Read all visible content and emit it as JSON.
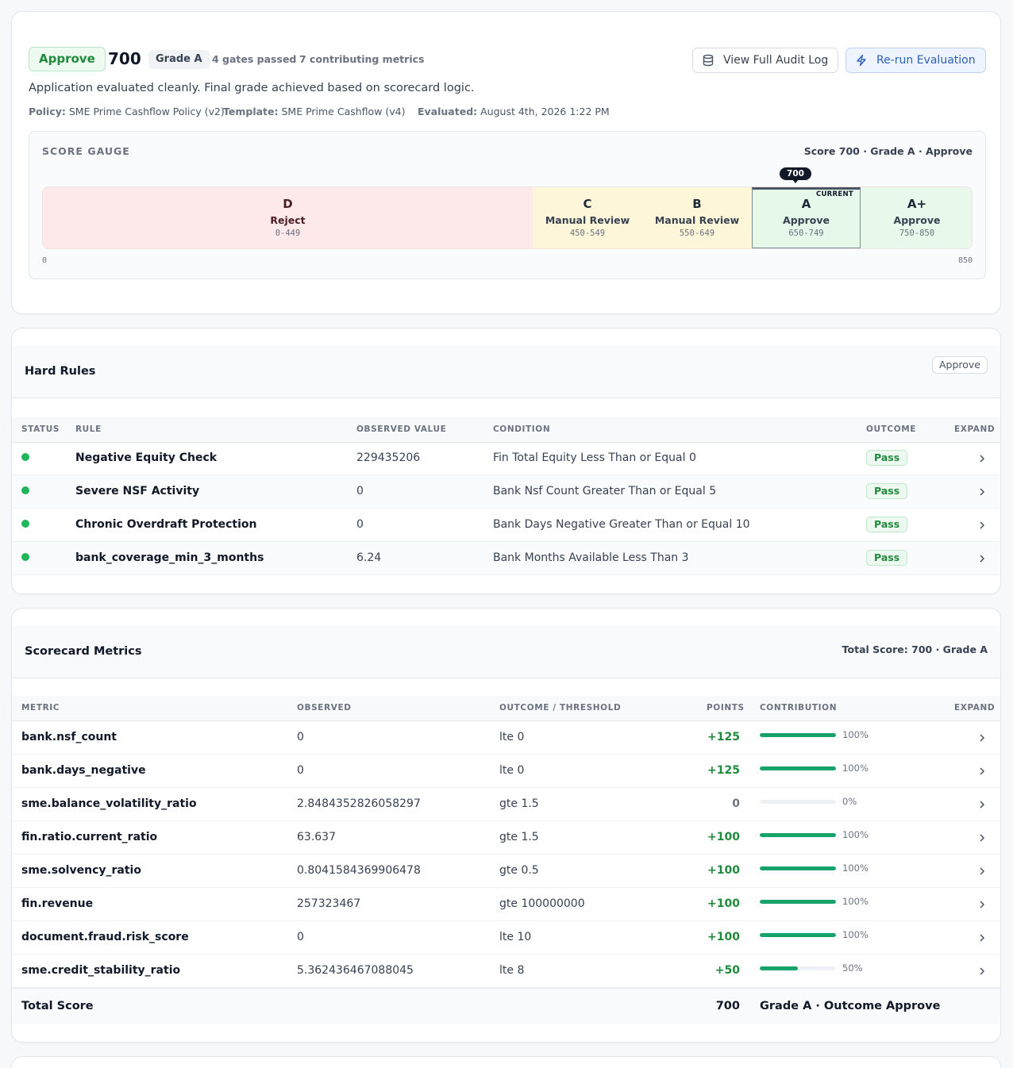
{
  "summary": {
    "decision": "Approve",
    "score": "700",
    "grade": "Grade A",
    "gates_passed": "4 gates passed",
    "contributing_metrics": "7 contributing metrics",
    "description": "Application evaluated cleanly. Final grade achieved based on scorecard logic.",
    "policy_label": "Policy:",
    "policy_value": "SME Prime Cashflow Policy (v2)",
    "template_label": "Template:",
    "template_value": "SME Prime Cashflow (v4)",
    "evaluated_label": "Evaluated:",
    "evaluated_value": "August 4th, 2026 1:22 PM",
    "audit_button": "View Full Audit Log",
    "rerun_button": "Re-run Evaluation"
  },
  "gauge": {
    "title": "SCORE GAUGE",
    "summary": "Score 700 · Grade A · Approve",
    "marker": "700",
    "current_label": "CURRENT",
    "current_score": 700,
    "min_label": "0",
    "max_label": "850",
    "bands": [
      {
        "grade": "D",
        "label": "Reject",
        "range": "0-449"
      },
      {
        "grade": "C",
        "label": "Manual Review",
        "range": "450-549"
      },
      {
        "grade": "B",
        "label": "Manual Review",
        "range": "550-649"
      },
      {
        "grade": "A",
        "label": "Approve",
        "range": "650-749"
      },
      {
        "grade": "A+",
        "label": "Approve",
        "range": "750-850"
      }
    ]
  },
  "hard_rules": {
    "title": "Hard Rules",
    "badge": "Approve",
    "columns": [
      "STATUS",
      "RULE",
      "OBSERVED VALUE",
      "CONDITION",
      "OUTCOME",
      "EXPAND"
    ],
    "rows": [
      {
        "rule": "Negative Equity Check",
        "observed": "229435206",
        "condition": "Fin Total Equity Less Than or Equal 0",
        "outcome": "Pass"
      },
      {
        "rule": "Severe NSF Activity",
        "observed": "0",
        "condition": "Bank Nsf Count Greater Than or Equal 5",
        "outcome": "Pass"
      },
      {
        "rule": "Chronic Overdraft Protection",
        "observed": "0",
        "condition": "Bank Days Negative Greater Than or Equal 10",
        "outcome": "Pass"
      },
      {
        "rule": "bank_coverage_min_3_months",
        "observed": "6.24",
        "condition": "Bank Months Available Less Than 3",
        "outcome": "Pass"
      }
    ]
  },
  "scorecard": {
    "title": "Scorecard Metrics",
    "total_header": "Total Score: 700 · Grade A",
    "columns": [
      "METRIC",
      "OBSERVED",
      "OUTCOME / THRESHOLD",
      "POINTS",
      "CONTRIBUTION",
      "EXPAND"
    ],
    "rows": [
      {
        "metric": "bank.nsf_count",
        "observed": "0",
        "threshold": "lte 0",
        "points": "+125",
        "contribution": 1.0,
        "pct": "100%"
      },
      {
        "metric": "bank.days_negative",
        "observed": "0",
        "threshold": "lte 0",
        "points": "+125",
        "contribution": 1.0,
        "pct": "100%"
      },
      {
        "metric": "sme.balance_volatility_ratio",
        "observed": "2.8484352826058297",
        "threshold": "gte 1.5",
        "points": "0",
        "contribution": 0.0,
        "pct": "0%"
      },
      {
        "metric": "fin.ratio.current_ratio",
        "observed": "63.637",
        "threshold": "gte 1.5",
        "points": "+100",
        "contribution": 1.0,
        "pct": "100%"
      },
      {
        "metric": "sme.solvency_ratio",
        "observed": "0.8041584369906478",
        "threshold": "gte 0.5",
        "points": "+100",
        "contribution": 1.0,
        "pct": "100%"
      },
      {
        "metric": "fin.revenue",
        "observed": "257323467",
        "threshold": "gte 100000000",
        "points": "+100",
        "contribution": 1.0,
        "pct": "100%"
      },
      {
        "metric": "document.fraud.risk_score",
        "observed": "0",
        "threshold": "lte 10",
        "points": "+100",
        "contribution": 1.0,
        "pct": "100%"
      },
      {
        "metric": "sme.credit_stability_ratio",
        "observed": "5.362436467088045",
        "threshold": "lte 8",
        "points": "+50",
        "contribution": 0.5,
        "pct": "50%"
      }
    ],
    "total_label": "Total Score",
    "total_points": "700",
    "total_outcome": "Grade A · Outcome Approve"
  },
  "colors": {
    "approve": "#1f8a3c",
    "bar_fill": "#16a36a",
    "reject_band": "#fde8ea",
    "review_band": "#fdf6d9",
    "approve_band": "#e6f8ea"
  },
  "icons": {
    "audit": "database-icon",
    "rerun": "lightning-icon",
    "expand": "chevron-right-icon",
    "status": "green-dot-icon"
  }
}
